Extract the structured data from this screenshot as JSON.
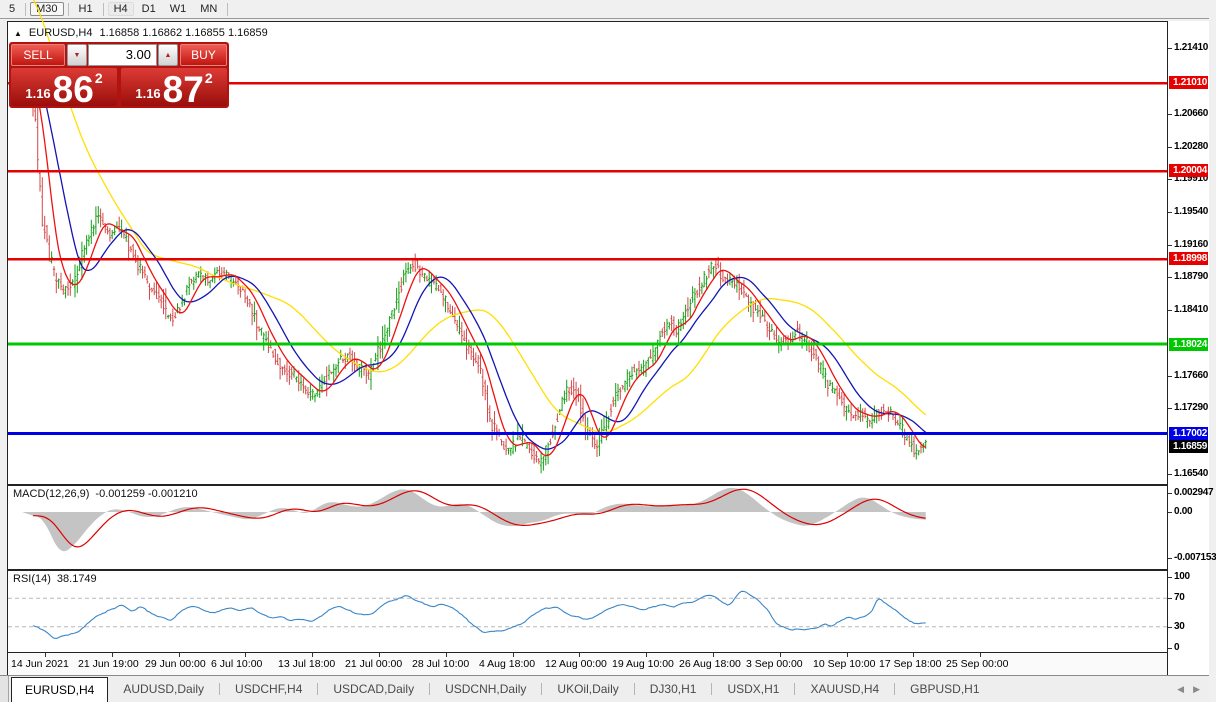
{
  "toolbar": {
    "timeframes": [
      {
        "label": "5",
        "state": "plain",
        "sep": true
      },
      {
        "label": "M30",
        "state": "selected",
        "sep": true
      },
      {
        "label": "H1",
        "state": "plain",
        "sep": true
      },
      {
        "label": "H4",
        "state": "highlight",
        "sep": false
      },
      {
        "label": "D1",
        "state": "plain",
        "sep": false
      },
      {
        "label": "W1",
        "state": "plain",
        "sep": false
      },
      {
        "label": "MN",
        "state": "plain",
        "sep": true
      }
    ]
  },
  "chart": {
    "symbol_label": "EURUSD,H4",
    "ohlc_text": "1.16858 1.16862 1.16855 1.16859",
    "marker_icon": "▲"
  },
  "trade_panel": {
    "sell_label": "SELL",
    "buy_label": "BUY",
    "volume_value": "3.00",
    "spinner_down_icon": "▼",
    "spinner_up_icon": "▲",
    "bid": {
      "prefix": "1.16",
      "big": "86",
      "sup": "2"
    },
    "ask": {
      "prefix": "1.16",
      "big": "87",
      "sup": "2"
    }
  },
  "price_axis": {
    "ticks": [
      {
        "label": "1.21410",
        "price": 1.2141
      },
      {
        "label": "1.20660",
        "price": 1.2066
      },
      {
        "label": "1.20280",
        "price": 1.2028
      },
      {
        "label": "1.19910",
        "price": 1.1991
      },
      {
        "label": "1.19540",
        "price": 1.1954
      },
      {
        "label": "1.19160",
        "price": 1.1916
      },
      {
        "label": "1.18790",
        "price": 1.1879
      },
      {
        "label": "1.18410",
        "price": 1.1841
      },
      {
        "label": "1.17660",
        "price": 1.1766
      },
      {
        "label": "1.17290",
        "price": 1.1729
      },
      {
        "label": "1.16540",
        "price": 1.1654
      }
    ],
    "badges": [
      {
        "label": "1.21010",
        "price": 1.2101,
        "bg": "#e60000",
        "fg": "#ffffff"
      },
      {
        "label": "1.20004",
        "price": 1.20004,
        "bg": "#e60000",
        "fg": "#ffffff"
      },
      {
        "label": "1.18998",
        "price": 1.18998,
        "bg": "#e60000",
        "fg": "#ffffff"
      },
      {
        "label": "1.18024",
        "price": 1.18024,
        "bg": "#00c800",
        "fg": "#ffffff"
      },
      {
        "label": "1.17002",
        "price": 1.17002,
        "bg": "#0000e6",
        "fg": "#ffffff"
      },
      {
        "label": "1.16859",
        "price": 1.16859,
        "bg": "#000000",
        "fg": "#ffffff"
      }
    ]
  },
  "indicators": {
    "macd": {
      "name": "MACD(12,26,9)",
      "values_text": "-0.001259 -0.001210",
      "axis_ticks": [
        {
          "label": "0.002947",
          "value": 0.002947
        },
        {
          "label": "0.00",
          "value": 0
        },
        {
          "label": "-0.007153",
          "value": -0.007153
        }
      ]
    },
    "rsi": {
      "name": "RSI(14)",
      "value_text": "38.1749",
      "axis_ticks": [
        {
          "label": "100",
          "value": 100
        },
        {
          "label": "70",
          "value": 70
        },
        {
          "label": "30",
          "value": 30
        },
        {
          "label": "0",
          "value": 0
        }
      ]
    }
  },
  "tabs": {
    "active_index": 0,
    "items": [
      "EURUSD,H4",
      "AUDUSD,Daily",
      "USDCHF,H4",
      "USDCAD,Daily",
      "USDCNH,Daily",
      "UKOil,Daily",
      "DJ30,H1",
      "USDX,H1",
      "XAUUSD,H4",
      "GBPUSD,H1"
    ],
    "scroll_left_icon": "◀",
    "scroll_right_icon": "▶"
  },
  "chart_data": {
    "type": "candlestick",
    "symbol": "EURUSD",
    "timeframe": "H4",
    "ohlc_display": {
      "open": "1.16858",
      "high": "1.16862",
      "low": "1.16855",
      "close": "1.16859"
    },
    "last_price": 1.16859,
    "x_labels": [
      "14 Jun 2021",
      "21 Jun 19:00",
      "29 Jun 00:00",
      "6 Jul 10:00",
      "13 Jul 18:00",
      "21 Jul 00:00",
      "28 Jul 10:00",
      "4 Aug 18:00",
      "12 Aug 00:00",
      "19 Aug 10:00",
      "26 Aug 18:00",
      "3 Sep 00:00",
      "10 Sep 10:00",
      "17 Sep 18:00",
      "25 Sep 00:00"
    ],
    "y_range_shown": [
      1.1654,
      1.2141
    ],
    "hlines": [
      {
        "price": 1.2101,
        "color": "#e60000",
        "width": 2.5
      },
      {
        "price": 1.20004,
        "color": "#e60000",
        "width": 2.5
      },
      {
        "price": 1.18998,
        "color": "#e60000",
        "width": 2.5
      },
      {
        "price": 1.18024,
        "color": "#00c800",
        "width": 3
      },
      {
        "price": 1.17002,
        "color": "#0000e6",
        "width": 3
      }
    ],
    "style": {
      "up": "#16a016",
      "down": "#d24a4a",
      "ma_fast": "#ee1111",
      "ma_mid": "#1414b4",
      "ma_slow": "#ffdf00",
      "macd_hist": "#c4c4c4",
      "macd_signal": "#dd0000",
      "rsi_line": "#3a87c8",
      "level_dash": "#b8b8b8"
    },
    "moving_averages": [
      {
        "name": "fast",
        "color": "#ee1111",
        "window": 8
      },
      {
        "name": "medium",
        "color": "#1414b4",
        "window": 18
      },
      {
        "name": "slow",
        "color": "#ffdf00",
        "window": 46
      }
    ],
    "price_path": [
      [
        0,
        1.2085
      ],
      [
        0.006,
        1.2024
      ],
      [
        0.013,
        1.1938
      ],
      [
        0.025,
        1.1881
      ],
      [
        0.036,
        1.1864
      ],
      [
        0.047,
        1.1875
      ],
      [
        0.064,
        1.1927
      ],
      [
        0.075,
        1.195
      ],
      [
        0.088,
        1.1927
      ],
      [
        0.099,
        1.1935
      ],
      [
        0.114,
        1.1904
      ],
      [
        0.131,
        1.1869
      ],
      [
        0.145,
        1.1852
      ],
      [
        0.155,
        1.1829
      ],
      [
        0.164,
        1.1841
      ],
      [
        0.175,
        1.1869
      ],
      [
        0.187,
        1.1884
      ],
      [
        0.2,
        1.1875
      ],
      [
        0.211,
        1.1887
      ],
      [
        0.226,
        1.1873
      ],
      [
        0.24,
        1.1858
      ],
      [
        0.251,
        1.1829
      ],
      [
        0.265,
        1.1801
      ],
      [
        0.279,
        1.1778
      ],
      [
        0.293,
        1.1766
      ],
      [
        0.304,
        1.1755
      ],
      [
        0.318,
        1.1743
      ],
      [
        0.332,
        1.1766
      ],
      [
        0.345,
        1.1784
      ],
      [
        0.356,
        1.1789
      ],
      [
        0.368,
        1.1774
      ],
      [
        0.379,
        1.177
      ],
      [
        0.393,
        1.1806
      ],
      [
        0.408,
        1.1852
      ],
      [
        0.419,
        1.1884
      ],
      [
        0.428,
        1.1896
      ],
      [
        0.441,
        1.1877
      ],
      [
        0.453,
        1.1869
      ],
      [
        0.466,
        1.1847
      ],
      [
        0.479,
        1.1818
      ],
      [
        0.491,
        1.1795
      ],
      [
        0.502,
        1.1772
      ],
      [
        0.513,
        1.1715
      ],
      [
        0.524,
        1.1692
      ],
      [
        0.535,
        1.168
      ],
      [
        0.546,
        1.1698
      ],
      [
        0.558,
        1.168
      ],
      [
        0.57,
        1.1667
      ],
      [
        0.58,
        1.1692
      ],
      [
        0.591,
        1.1726
      ],
      [
        0.602,
        1.1755
      ],
      [
        0.611,
        1.1743
      ],
      [
        0.622,
        1.1703
      ],
      [
        0.631,
        1.1686
      ],
      [
        0.64,
        1.1703
      ],
      [
        0.65,
        1.1732
      ],
      [
        0.661,
        1.1755
      ],
      [
        0.673,
        1.1772
      ],
      [
        0.684,
        1.1774
      ],
      [
        0.695,
        1.1789
      ],
      [
        0.706,
        1.1818
      ],
      [
        0.715,
        1.1829
      ],
      [
        0.723,
        1.1818
      ],
      [
        0.732,
        1.1841
      ],
      [
        0.74,
        1.1858
      ],
      [
        0.749,
        1.1869
      ],
      [
        0.757,
        1.1884
      ],
      [
        0.766,
        1.1896
      ],
      [
        0.774,
        1.1877
      ],
      [
        0.784,
        1.1873
      ],
      [
        0.794,
        1.1866
      ],
      [
        0.803,
        1.1852
      ],
      [
        0.812,
        1.1838
      ],
      [
        0.821,
        1.1829
      ],
      [
        0.83,
        1.1812
      ],
      [
        0.839,
        1.1804
      ],
      [
        0.848,
        1.1809
      ],
      [
        0.857,
        1.1816
      ],
      [
        0.866,
        1.1806
      ],
      [
        0.875,
        1.1793
      ],
      [
        0.884,
        1.1774
      ],
      [
        0.893,
        1.1755
      ],
      [
        0.902,
        1.1743
      ],
      [
        0.911,
        1.1729
      ],
      [
        0.92,
        1.1721
      ],
      [
        0.929,
        1.1724
      ],
      [
        0.938,
        1.1715
      ],
      [
        0.946,
        1.1724
      ],
      [
        0.955,
        1.1729
      ],
      [
        0.964,
        1.1721
      ],
      [
        0.973,
        1.1709
      ],
      [
        0.982,
        1.1692
      ],
      [
        0.991,
        1.1678
      ],
      [
        1,
        1.1686
      ]
    ],
    "macd": {
      "params": "12,26,9",
      "main": -0.001259,
      "signal": -0.00121,
      "y_ticks": [
        0.002947,
        0,
        -0.007153
      ],
      "path": [
        [
          0,
          -0.0003
        ],
        [
          0.013,
          -0.0012
        ],
        [
          0.03,
          -0.0068
        ],
        [
          0.047,
          -0.0051
        ],
        [
          0.064,
          -0.002
        ],
        [
          0.08,
          0
        ],
        [
          0.092,
          0.0006
        ],
        [
          0.108,
          0
        ],
        [
          0.125,
          -0.0009
        ],
        [
          0.142,
          -0.0006
        ],
        [
          0.159,
          0.0005
        ],
        [
          0.175,
          0.0009
        ],
        [
          0.192,
          0.0003
        ],
        [
          0.209,
          -0.0003
        ],
        [
          0.226,
          -0.0008
        ],
        [
          0.242,
          -0.0013
        ],
        [
          0.259,
          -0.0003
        ],
        [
          0.276,
          0.0008
        ],
        [
          0.293,
          0.0003
        ],
        [
          0.307,
          -0.0005
        ],
        [
          0.323,
          0.0012
        ],
        [
          0.337,
          0.0017
        ],
        [
          0.354,
          0.0009
        ],
        [
          0.371,
          0.0008
        ],
        [
          0.388,
          0.0019
        ],
        [
          0.404,
          0.0033
        ],
        [
          0.419,
          0.0037
        ],
        [
          0.432,
          0.0026
        ],
        [
          0.446,
          0.0011
        ],
        [
          0.46,
          0.0007
        ],
        [
          0.475,
          0.0014
        ],
        [
          0.488,
          0.0011
        ],
        [
          0.505,
          -0.0005
        ],
        [
          0.522,
          -0.002
        ],
        [
          0.539,
          -0.0023
        ],
        [
          0.555,
          -0.0017
        ],
        [
          0.572,
          -0.0014
        ],
        [
          0.589,
          -0.0003
        ],
        [
          0.606,
          -0.0002
        ],
        [
          0.622,
          -0.0006
        ],
        [
          0.639,
          0.0007
        ],
        [
          0.656,
          0.0014
        ],
        [
          0.673,
          0.0011
        ],
        [
          0.69,
          0.0008
        ],
        [
          0.706,
          0.0011
        ],
        [
          0.723,
          0.0012
        ],
        [
          0.74,
          0.0011
        ],
        [
          0.757,
          0.0022
        ],
        [
          0.773,
          0.0036
        ],
        [
          0.788,
          0.0039
        ],
        [
          0.801,
          0.0028
        ],
        [
          0.818,
          0.0008
        ],
        [
          0.835,
          -0.0009
        ],
        [
          0.851,
          -0.0018
        ],
        [
          0.868,
          -0.0023
        ],
        [
          0.885,
          -0.0012
        ],
        [
          0.902,
          0.0003
        ],
        [
          0.919,
          0.0019
        ],
        [
          0.933,
          0.0025
        ],
        [
          0.946,
          0.0014
        ],
        [
          0.963,
          -0.0002
        ],
        [
          0.98,
          -0.0009
        ],
        [
          1,
          -0.00126
        ]
      ]
    },
    "rsi": {
      "period": 14,
      "value": 38.1749,
      "levels": [
        70,
        30
      ],
      "y_ticks": [
        100,
        70,
        30,
        0
      ],
      "path": [
        [
          0,
          32
        ],
        [
          0.013,
          25
        ],
        [
          0.025,
          13
        ],
        [
          0.036,
          18
        ],
        [
          0.05,
          22
        ],
        [
          0.064,
          38
        ],
        [
          0.077,
          48
        ],
        [
          0.088,
          55
        ],
        [
          0.099,
          60
        ],
        [
          0.111,
          52
        ],
        [
          0.122,
          58
        ],
        [
          0.133,
          48
        ],
        [
          0.144,
          42
        ],
        [
          0.155,
          38
        ],
        [
          0.166,
          52
        ],
        [
          0.178,
          58
        ],
        [
          0.189,
          55
        ],
        [
          0.2,
          48
        ],
        [
          0.211,
          52
        ],
        [
          0.222,
          58
        ],
        [
          0.234,
          52
        ],
        [
          0.245,
          58
        ],
        [
          0.256,
          48
        ],
        [
          0.267,
          42
        ],
        [
          0.278,
          45
        ],
        [
          0.289,
          38
        ],
        [
          0.301,
          42
        ],
        [
          0.312,
          38
        ],
        [
          0.323,
          45
        ],
        [
          0.334,
          55
        ],
        [
          0.345,
          58
        ],
        [
          0.356,
          52
        ],
        [
          0.368,
          45
        ],
        [
          0.379,
          48
        ],
        [
          0.39,
          58
        ],
        [
          0.401,
          65
        ],
        [
          0.412,
          72
        ],
        [
          0.419,
          75
        ],
        [
          0.427,
          68
        ],
        [
          0.438,
          62
        ],
        [
          0.449,
          58
        ],
        [
          0.46,
          62
        ],
        [
          0.472,
          55
        ],
        [
          0.483,
          45
        ],
        [
          0.494,
          30
        ],
        [
          0.505,
          22
        ],
        [
          0.516,
          24
        ],
        [
          0.527,
          22
        ],
        [
          0.539,
          30
        ],
        [
          0.55,
          35
        ],
        [
          0.561,
          48
        ],
        [
          0.572,
          55
        ],
        [
          0.583,
          58
        ],
        [
          0.594,
          52
        ],
        [
          0.606,
          45
        ],
        [
          0.617,
          40
        ],
        [
          0.628,
          42
        ],
        [
          0.639,
          52
        ],
        [
          0.65,
          58
        ],
        [
          0.661,
          62
        ],
        [
          0.673,
          58
        ],
        [
          0.684,
          55
        ],
        [
          0.695,
          58
        ],
        [
          0.706,
          62
        ],
        [
          0.717,
          58
        ],
        [
          0.728,
          62
        ],
        [
          0.74,
          65
        ],
        [
          0.751,
          72
        ],
        [
          0.759,
          75
        ],
        [
          0.766,
          70
        ],
        [
          0.773,
          65
        ],
        [
          0.781,
          60
        ],
        [
          0.79,
          78
        ],
        [
          0.799,
          80
        ],
        [
          0.807,
          72
        ],
        [
          0.815,
          65
        ],
        [
          0.823,
          55
        ],
        [
          0.832,
          35
        ],
        [
          0.841,
          28
        ],
        [
          0.85,
          25
        ],
        [
          0.859,
          27
        ],
        [
          0.868,
          25
        ],
        [
          0.877,
          28
        ],
        [
          0.886,
          35
        ],
        [
          0.895,
          30
        ],
        [
          0.904,
          38
        ],
        [
          0.913,
          42
        ],
        [
          0.922,
          40
        ],
        [
          0.931,
          45
        ],
        [
          0.94,
          52
        ],
        [
          0.946,
          72
        ],
        [
          0.953,
          66
        ],
        [
          0.96,
          58
        ],
        [
          0.966,
          52
        ],
        [
          0.973,
          46
        ],
        [
          0.98,
          40
        ],
        [
          0.987,
          36
        ],
        [
          0.993,
          33
        ],
        [
          1,
          38
        ]
      ]
    }
  }
}
